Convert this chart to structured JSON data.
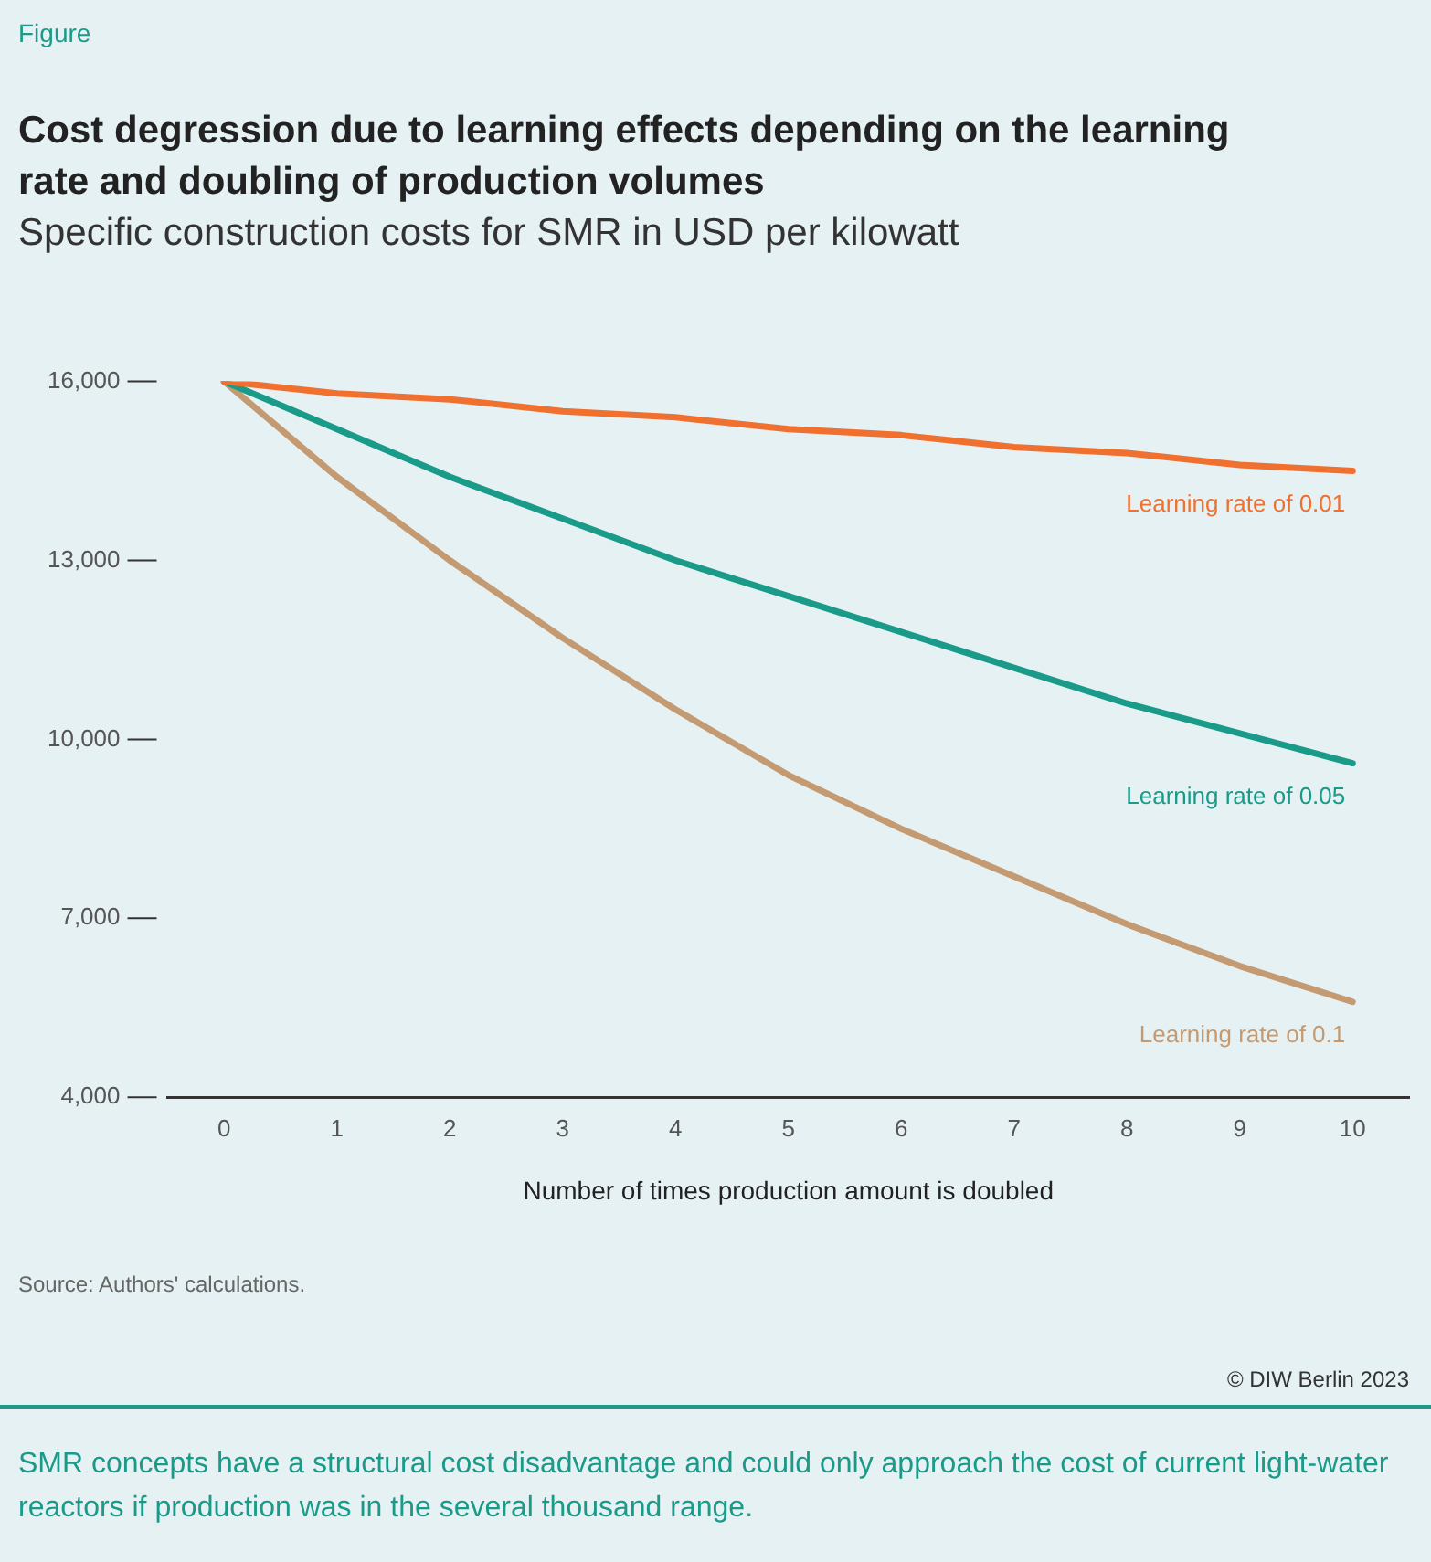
{
  "chart_data": {
    "type": "line",
    "title": "Cost degression due to learning effects depending on the learning rate and doubling of production volumes",
    "subtitle": "Specific construction costs for SMR in USD per kilowatt",
    "xlabel": "Number of times production amount is doubled",
    "categories": [
      "0",
      "1",
      "2",
      "3",
      "4",
      "5",
      "6",
      "7",
      "8",
      "9",
      "10"
    ],
    "series": [
      {
        "name": "Learning rate of 0.01",
        "color": "#f07030",
        "values": [
          16000,
          15800,
          15700,
          15500,
          15400,
          15200,
          15100,
          14900,
          14800,
          14600,
          14500
        ]
      },
      {
        "name": "Learning rate of 0.05",
        "color": "#1a9a88",
        "values": [
          16000,
          15200,
          14400,
          13700,
          13000,
          12400,
          11800,
          11200,
          10600,
          10100,
          9600
        ]
      },
      {
        "name": "Learning rate of 0.1",
        "color": "#c49a72",
        "values": [
          16000,
          14400,
          13000,
          11700,
          10500,
          9400,
          8500,
          7700,
          6900,
          6200,
          5600
        ]
      }
    ],
    "ylim": [
      4000,
      16000
    ],
    "yticks": [
      {
        "value": 4000,
        "label": "4,000"
      },
      {
        "value": 7000,
        "label": "7,000"
      },
      {
        "value": 10000,
        "label": "10,000"
      },
      {
        "value": 13000,
        "label": "13,000"
      },
      {
        "value": 16000,
        "label": "16,000"
      }
    ],
    "grid": false,
    "legend": false,
    "marker": "none",
    "line_style": "solid",
    "annotations": [
      "Figure",
      "Source: Authors' calculations.",
      "© DIW Berlin 2023",
      "SMR concepts have a structural cost disadvantage and could only approach the cost of current light-water reactors if production was in the several thousand range."
    ]
  }
}
